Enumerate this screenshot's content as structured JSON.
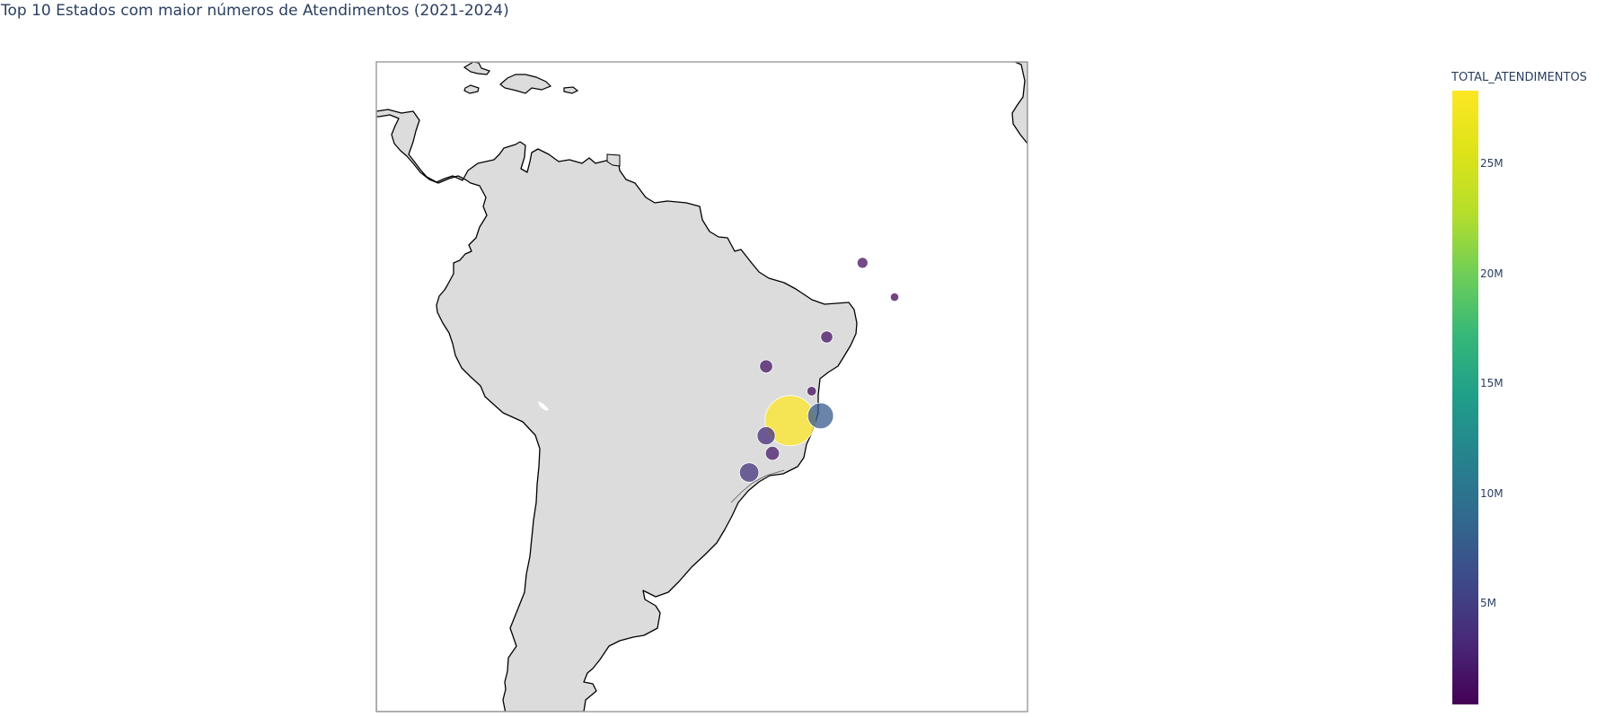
{
  "title": "Top 10 Estados com maior números de Atendimentos (2021-2024)",
  "colors": {
    "land": "#dcdcdc",
    "coastline": "#000000",
    "frame": "#a0a0a0",
    "marker_line": "#ffffff"
  },
  "colorbar": {
    "title": "TOTAL_ATENDIMENTOS",
    "colorscale": "viridis",
    "range": [
      400000,
      28300000
    ],
    "ticks": [
      {
        "value": 5000000,
        "label": "5M"
      },
      {
        "value": 10000000,
        "label": "10M"
      },
      {
        "value": 15000000,
        "label": "15M"
      },
      {
        "value": 20000000,
        "label": "20M"
      },
      {
        "value": 25000000,
        "label": "25M"
      }
    ]
  },
  "chart_data": {
    "type": "scatter_geo",
    "title": "Top 10 Estados com maior números de Atendimentos (2021-2024)",
    "projection": "equirectangular",
    "lon_range": [
      -93,
      -20
    ],
    "lat_range": [
      -60,
      21.5
    ],
    "color_variable": "TOTAL_ATENDIMENTOS",
    "size_variable": "TOTAL_ATENDIMENTOS",
    "points": [
      {
        "lon": -46.6,
        "lat": -23.5,
        "value": 28300000
      },
      {
        "lon": -43.2,
        "lat": -22.9,
        "value": 7500000
      },
      {
        "lon": -49.3,
        "lat": -25.4,
        "value": 3700000
      },
      {
        "lon": -51.2,
        "lat": -30.0,
        "value": 4200000
      },
      {
        "lon": -48.6,
        "lat": -27.6,
        "value": 2200000
      },
      {
        "lon": -49.3,
        "lat": -16.7,
        "value": 1900000
      },
      {
        "lon": -44.2,
        "lat": -19.8,
        "value": 1000000
      },
      {
        "lon": -42.5,
        "lat": -13.0,
        "value": 1600000
      },
      {
        "lon": -38.5,
        "lat": -3.7,
        "value": 1300000
      },
      {
        "lon": -34.9,
        "lat": -8.0,
        "value": 800000
      }
    ]
  }
}
